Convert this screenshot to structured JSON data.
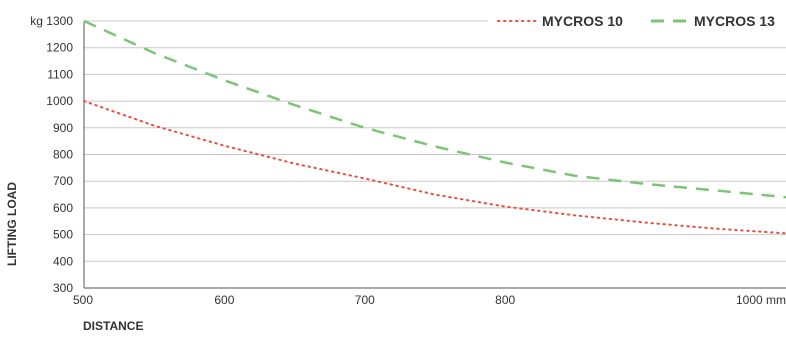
{
  "chart_data": {
    "type": "line",
    "xlabel": "DISTANCE",
    "ylabel": "LIFTING LOAD",
    "xlim": [
      500,
      1000
    ],
    "ylim": [
      300,
      1300
    ],
    "x_ticks": [
      500,
      600,
      700,
      800,
      1000
    ],
    "x_tick_labels": [
      "500",
      "600",
      "700",
      "800",
      "1000 mm"
    ],
    "y_ticks": [
      300,
      400,
      500,
      600,
      700,
      800,
      900,
      1000,
      1100,
      1200,
      1300
    ],
    "y_tick_labels": [
      "300",
      "400",
      "500",
      "600",
      "700",
      "800",
      "900",
      "1000",
      "1100",
      "1200",
      "kg 1300"
    ],
    "grid": "horizontal",
    "legend_position": "top-right",
    "series": [
      {
        "name": "MYCROS 10",
        "color": "#e8513c",
        "style": "dotted",
        "x": [
          500,
          550,
          600,
          650,
          700,
          750,
          800,
          850,
          900,
          950,
          1000
        ],
        "values": [
          1000,
          908,
          833,
          766,
          710,
          650,
          605,
          572,
          545,
          522,
          505
        ]
      },
      {
        "name": "MYCROS 13",
        "color": "#7cc576",
        "style": "dashed",
        "x": [
          500,
          550,
          600,
          650,
          700,
          750,
          800,
          850,
          900,
          950,
          1000
        ],
        "values": [
          1300,
          1180,
          1078,
          985,
          900,
          830,
          770,
          720,
          690,
          665,
          640
        ]
      }
    ]
  }
}
